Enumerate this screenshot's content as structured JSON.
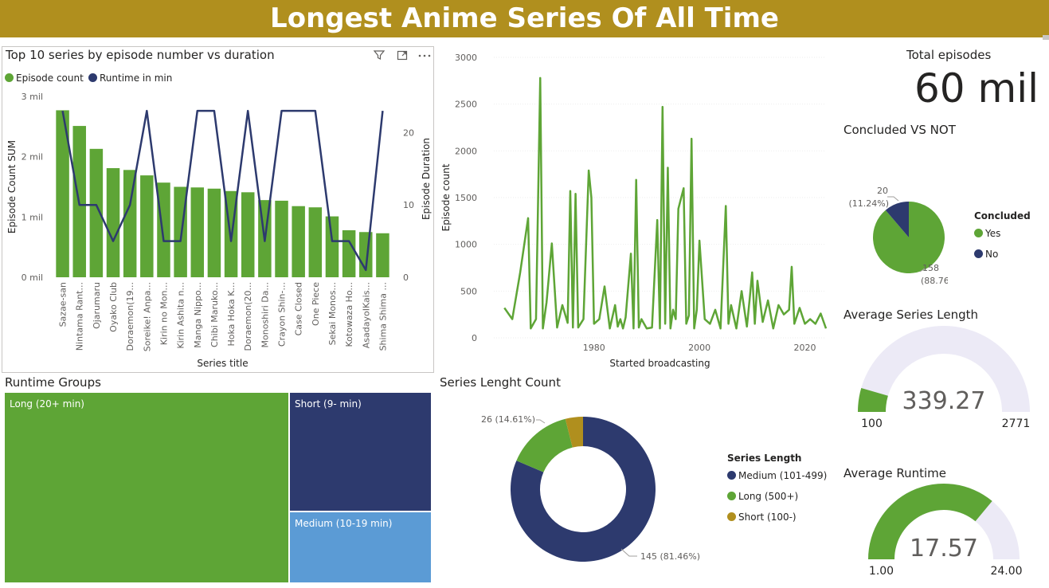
{
  "title": "Longest Anime Series Of All Time",
  "colors": {
    "banner": "#b08f1e",
    "green": "#5ea536",
    "navy": "#2d3a6e",
    "gold": "#b08f1e",
    "lightblue": "#5b9bd5",
    "gauge_bg": "#eceaf6"
  },
  "bar_visual": {
    "icons": [
      "filter-icon",
      "focus-mode-icon",
      "more-options-icon"
    ]
  },
  "kpi": {
    "title": "Total episodes",
    "value": "60 mil"
  },
  "gauge_series": {
    "title": "Average Series Length",
    "value_label": "339.27",
    "min_label": "100",
    "max_label": "2771"
  },
  "gauge_runtime": {
    "title": "Average Runtime",
    "value_label": "17.57",
    "min_label": "1.00",
    "max_label": "24.00"
  },
  "chart_data": [
    {
      "id": "top10",
      "type": "bar",
      "title": "Top 10 series by episode number vs duration",
      "xlabel": "Series title",
      "ylabel": "Episode Count SUM",
      "y2label": "Episode Duration",
      "ylim": [
        0,
        3000000
      ],
      "y2lim": [
        0,
        25
      ],
      "yticks": [
        "0 mil",
        "1 mil",
        "2 mil",
        "3 mil"
      ],
      "y2ticks": [
        "0",
        "10",
        "20"
      ],
      "legend_position": "top-left",
      "categories": [
        "Sazae-san",
        "Nintama Rant...",
        "Ojarumaru",
        "Oyako Club",
        "Doraemon(19...",
        "Soreike! Anpa...",
        "Kirin no Mon...",
        "Kirin Ashita n...",
        "Manga Nippo...",
        "Chibi Maruko...",
        "Hoka Hoka K...",
        "Doraemon(20...",
        "Monoshiri Da...",
        "Crayon Shin-...",
        "Case Closed",
        "One Piece",
        "Sekai Monos...",
        "Kotowaza Ho...",
        "AsadayoIKais...",
        "Shima Shima ..."
      ],
      "series": [
        {
          "name": "Episode count",
          "type": "bar",
          "axis": "left",
          "values": [
            2770000,
            2510000,
            2130000,
            1810000,
            1780000,
            1690000,
            1570000,
            1500000,
            1490000,
            1470000,
            1430000,
            1410000,
            1280000,
            1270000,
            1180000,
            1160000,
            1010000,
            780000,
            750000,
            730000
          ]
        },
        {
          "name": "Runtime in min",
          "type": "line",
          "axis": "right",
          "values": [
            23,
            10,
            10,
            5,
            10,
            23,
            5,
            5,
            23,
            23,
            5,
            23,
            5,
            23,
            23,
            23,
            5,
            5,
            1,
            23
          ]
        }
      ]
    },
    {
      "id": "broadcast",
      "type": "line",
      "xlabel": "Started broadcasting",
      "ylabel": "Episode count",
      "xlim": [
        1961,
        2024
      ],
      "ylim": [
        0,
        3000
      ],
      "xticks": [
        1980,
        2000,
        2020
      ],
      "yticks": [
        0,
        500,
        1000,
        1500,
        2000,
        2500,
        3000
      ],
      "x": [
        1963,
        1964.5,
        1966,
        1967.5,
        1968,
        1969,
        1969.8,
        1970.3,
        1971,
        1972,
        1973,
        1974,
        1975,
        1975.5,
        1976,
        1976.5,
        1977,
        1978,
        1979,
        1979.5,
        1980,
        1981,
        1982,
        1983,
        1984,
        1984.5,
        1985,
        1985.5,
        1986,
        1987,
        1987.5,
        1988,
        1988.5,
        1989,
        1990,
        1991,
        1992,
        1992.5,
        1993,
        1993.5,
        1994,
        1994.5,
        1995,
        1995.5,
        1996,
        1997,
        1997.5,
        1998,
        1998.5,
        1999,
        1999.5,
        2000,
        2001,
        2002,
        2003,
        2004,
        2005,
        2005.5,
        2006,
        2007,
        2008,
        2009,
        2009.5,
        2010,
        2010.5,
        2011,
        2012,
        2013,
        2014,
        2015,
        2016,
        2017,
        2017.5,
        2018,
        2019,
        2020,
        2021,
        2022,
        2023,
        2024
      ],
      "series": [
        {
          "name": "",
          "values": [
            320,
            200,
            700,
            1280,
            100,
            200,
            2780,
            100,
            380,
            1010,
            110,
            350,
            160,
            1570,
            110,
            1540,
            110,
            200,
            1790,
            1500,
            150,
            200,
            550,
            100,
            350,
            120,
            200,
            100,
            220,
            900,
            100,
            1690,
            110,
            200,
            100,
            110,
            1260,
            100,
            2470,
            150,
            1820,
            100,
            300,
            200,
            1380,
            1600,
            150,
            240,
            2130,
            100,
            300,
            1040,
            200,
            150,
            300,
            100,
            1410,
            150,
            350,
            100,
            500,
            120,
            400,
            700,
            150,
            610,
            170,
            400,
            100,
            350,
            250,
            300,
            760,
            150,
            320,
            150,
            200,
            150,
            260,
            100
          ]
        }
      ]
    },
    {
      "id": "concluded",
      "type": "pie",
      "title": "Concluded VS NOT",
      "legend_title": "Concluded",
      "legend_position": "right",
      "slices": [
        {
          "label": "Yes",
          "value": 158,
          "pct": "88.76%",
          "color": "#5ea536"
        },
        {
          "label": "No",
          "value": 20,
          "pct": "11.24%",
          "color": "#2d3a6e"
        }
      ],
      "data_labels": {
        "yes": "158",
        "yes_pct": "(88.76%)",
        "no": "20",
        "no_pct": "(11.24%)"
      }
    },
    {
      "id": "runtime_groups",
      "type": "treemap",
      "title": "Runtime Groups",
      "items": [
        {
          "label": "Long (20+ min)",
          "color": "#5ea536"
        },
        {
          "label": "Short (9- min)",
          "color": "#2d3a6e"
        },
        {
          "label": "Medium (10-19 min)",
          "color": "#5b9bd5"
        }
      ]
    },
    {
      "id": "series_length",
      "type": "pie",
      "title": "Series Lenght Count",
      "legend_title": "Series Length",
      "legend_position": "right",
      "slices": [
        {
          "label": "Medium (101-499)",
          "value": 145,
          "pct": "81.46%",
          "color": "#2d3a6e"
        },
        {
          "label": "Long (500+)",
          "value": 26,
          "pct": "14.61%",
          "color": "#5ea536"
        },
        {
          "label": "Short (100-)",
          "value": 7,
          "pct": "3.93%",
          "color": "#b08f1e"
        }
      ],
      "data_labels": {
        "medium": "145 (81.46%)",
        "long": "26 (14.61%)"
      }
    }
  ]
}
